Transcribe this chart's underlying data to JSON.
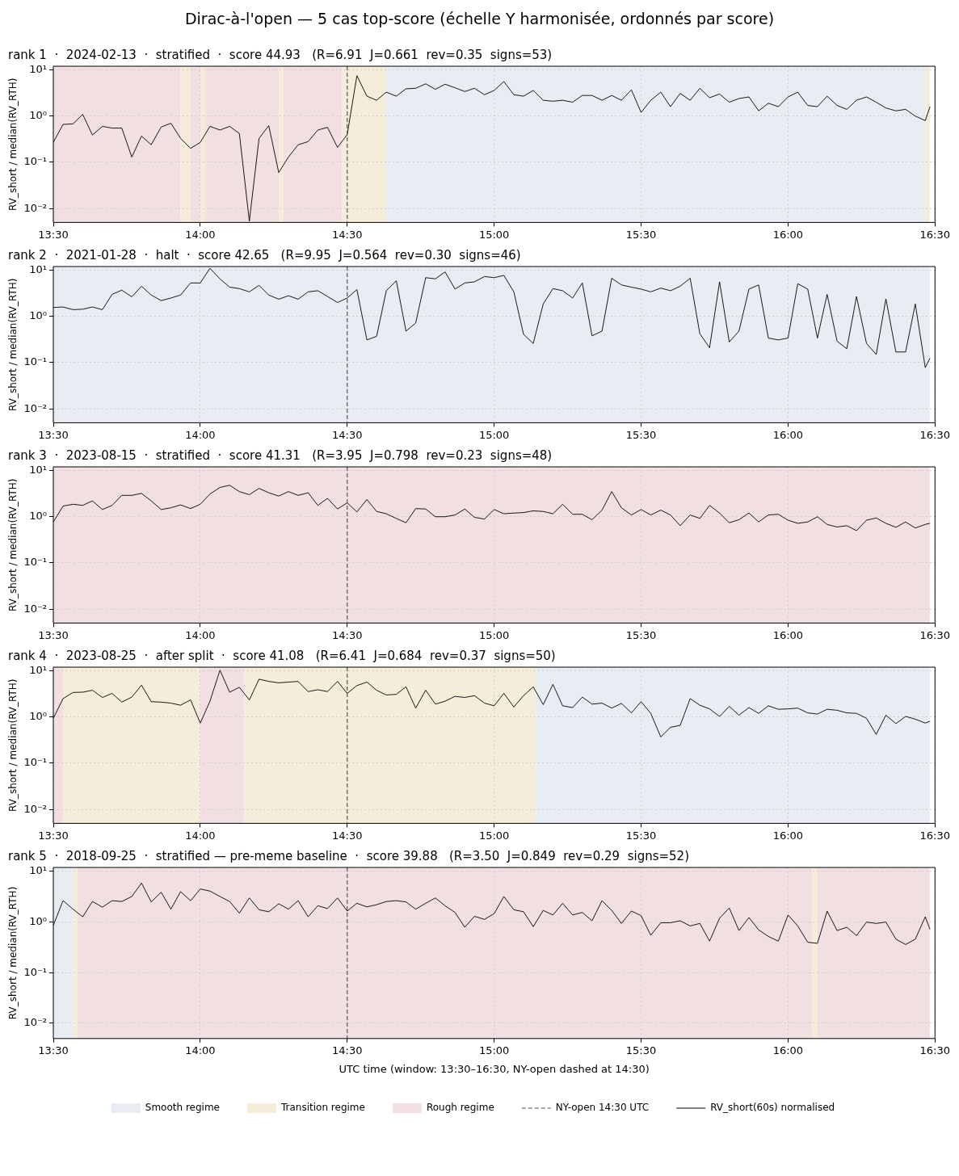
{
  "chart_data": [
    {
      "type": "line",
      "title": "Dirac-à-l'open — 5 cas top-score (échelle Y harmonisée, ordonnés par score)",
      "subtitle": "rank 1  ·  2024-02-13  ·  stratified  ·  score 44.93   (R=6.91  J=0.661  rev=0.35  signs=53)",
      "ylabel": "RV_short / median(RV_RTH)",
      "log": "y",
      "grid": true,
      "marker": "none",
      "xlim": [
        13.5,
        16.5
      ],
      "xticks": [
        {
          "value": 13.5,
          "label": "13:30"
        },
        {
          "value": 14,
          "label": "14:00"
        },
        {
          "value": 14.5,
          "label": "14:30"
        },
        {
          "value": 15,
          "label": "15:00"
        },
        {
          "value": 15.5,
          "label": "15:30"
        },
        {
          "value": 16,
          "label": "16:00"
        },
        {
          "value": 16.5,
          "label": "16:30"
        }
      ],
      "ylim": [
        0.005,
        12
      ],
      "yticks": [
        {
          "value": 0.01,
          "label": "10⁻²"
        },
        {
          "value": 0.1,
          "label": "10⁻¹"
        },
        {
          "value": 1,
          "label": "10⁰"
        },
        {
          "value": 10,
          "label": "10¹"
        }
      ],
      "x": [
        13.5,
        13.533,
        13.567,
        13.6,
        13.633,
        13.667,
        13.7,
        13.733,
        13.767,
        13.8,
        13.833,
        13.867,
        13.9,
        13.933,
        13.967,
        14.0,
        14.033,
        14.067,
        14.1,
        14.133,
        14.167,
        14.2,
        14.233,
        14.267,
        14.3,
        14.333,
        14.367,
        14.4,
        14.433,
        14.467,
        14.5,
        14.533,
        14.567,
        14.6,
        14.633,
        14.667,
        14.7,
        14.733,
        14.767,
        14.8,
        14.833,
        14.867,
        14.9,
        14.933,
        14.967,
        15.0,
        15.033,
        15.067,
        15.1,
        15.133,
        15.167,
        15.2,
        15.233,
        15.267,
        15.3,
        15.333,
        15.367,
        15.4,
        15.433,
        15.467,
        15.5,
        15.533,
        15.567,
        15.6,
        15.633,
        15.667,
        15.7,
        15.733,
        15.767,
        15.8,
        15.833,
        15.867,
        15.9,
        15.933,
        15.967,
        16.0,
        16.033,
        16.067,
        16.1,
        16.133,
        16.167,
        16.2,
        16.233,
        16.267,
        16.3,
        16.333,
        16.367,
        16.4,
        16.433,
        16.467,
        16.483
      ],
      "series": [
        {
          "color": "#000000",
          "values": [
            0.27,
            0.66,
            0.68,
            1.09,
            0.39,
            0.6,
            0.55,
            0.55,
            0.13,
            0.37,
            0.24,
            0.58,
            0.7,
            0.33,
            0.2,
            0.27,
            0.6,
            0.5,
            0.6,
            0.42,
            0.0053,
            0.33,
            0.62,
            0.06,
            0.13,
            0.24,
            0.28,
            0.5,
            0.57,
            0.21,
            0.4,
            7.5,
            2.7,
            2.2,
            3.3,
            2.7,
            3.9,
            4.0,
            5.0,
            3.8,
            4.9,
            4.1,
            3.4,
            4.0,
            2.9,
            3.6,
            5.6,
            2.9,
            2.7,
            3.6,
            2.2,
            2.1,
            2.2,
            2.0,
            2.8,
            2.8,
            2.2,
            2.8,
            2.2,
            3.7,
            1.2,
            2.2,
            3.3,
            1.6,
            3.1,
            2.2,
            4.0,
            2.5,
            3.0,
            2.0,
            2.4,
            2.6,
            1.3,
            1.9,
            1.6,
            2.6,
            3.3,
            1.7,
            1.6,
            2.7,
            1.7,
            1.4,
            2.2,
            2.6,
            2.0,
            1.5,
            1.3,
            1.4,
            1.0,
            0.8,
            1.6
          ]
        }
      ],
      "ref_lines": [
        {
          "axis": "x",
          "value": 14.5,
          "color": "#555555",
          "line_style": "dashed"
        }
      ],
      "bands": [
        {
          "axis": "x",
          "from": 13.5,
          "to": 13.933,
          "color": "#f2dfe2"
        },
        {
          "axis": "x",
          "from": 13.933,
          "to": 13.967,
          "color": "#f5ecd9"
        },
        {
          "axis": "x",
          "from": 13.967,
          "to": 14.0,
          "color": "#f2dfe2"
        },
        {
          "axis": "x",
          "from": 14.0,
          "to": 14.017,
          "color": "#f5ecd9"
        },
        {
          "axis": "x",
          "from": 14.017,
          "to": 14.267,
          "color": "#f2dfe2"
        },
        {
          "axis": "x",
          "from": 14.267,
          "to": 14.283,
          "color": "#f5ecd9"
        },
        {
          "axis": "x",
          "from": 14.283,
          "to": 14.483,
          "color": "#f2dfe2"
        },
        {
          "axis": "x",
          "from": 14.483,
          "to": 14.633,
          "color": "#f5ecd9"
        },
        {
          "axis": "x",
          "from": 14.633,
          "to": 16.467,
          "color": "#e8edf3"
        },
        {
          "axis": "x",
          "from": 16.467,
          "to": 16.483,
          "color": "#f5ecd9"
        }
      ]
    },
    {
      "type": "line",
      "subtitle": "rank 2  ·  2021-01-28  ·  halt  ·  score 42.65   (R=9.95  J=0.564  rev=0.30  signs=46)",
      "ylabel": "RV_short / median(RV_RTH)",
      "log": "y",
      "grid": true,
      "marker": "none",
      "xlim": [
        13.5,
        16.5
      ],
      "xticks": [
        {
          "value": 13.5,
          "label": "13:30"
        },
        {
          "value": 14,
          "label": "14:00"
        },
        {
          "value": 14.5,
          "label": "14:30"
        },
        {
          "value": 15,
          "label": "15:00"
        },
        {
          "value": 15.5,
          "label": "15:30"
        },
        {
          "value": 16,
          "label": "16:00"
        },
        {
          "value": 16.5,
          "label": "16:30"
        }
      ],
      "ylim": [
        0.005,
        12
      ],
      "yticks": [
        {
          "value": 0.01,
          "label": "10⁻²"
        },
        {
          "value": 0.1,
          "label": "10⁻¹"
        },
        {
          "value": 1,
          "label": "10⁰"
        },
        {
          "value": 10,
          "label": "10¹"
        }
      ],
      "x": [
        13.5,
        13.533,
        13.567,
        13.6,
        13.633,
        13.667,
        13.7,
        13.733,
        13.767,
        13.8,
        13.833,
        13.867,
        13.9,
        13.933,
        13.967,
        14.0,
        14.033,
        14.067,
        14.1,
        14.133,
        14.167,
        14.2,
        14.233,
        14.267,
        14.3,
        14.333,
        14.367,
        14.4,
        14.433,
        14.467,
        14.5,
        14.533,
        14.567,
        14.6,
        14.633,
        14.667,
        14.7,
        14.733,
        14.767,
        14.8,
        14.833,
        14.867,
        14.9,
        14.933,
        14.967,
        15.0,
        15.033,
        15.067,
        15.1,
        15.133,
        15.167,
        15.2,
        15.233,
        15.267,
        15.3,
        15.333,
        15.367,
        15.4,
        15.433,
        15.467,
        15.5,
        15.533,
        15.567,
        15.6,
        15.633,
        15.667,
        15.7,
        15.733,
        15.767,
        15.8,
        15.833,
        15.867,
        15.9,
        15.933,
        15.967,
        16.0,
        16.033,
        16.067,
        16.1,
        16.133,
        16.167,
        16.2,
        16.233,
        16.267,
        16.3,
        16.333,
        16.367,
        16.4,
        16.433,
        16.467,
        16.483
      ],
      "series": [
        {
          "color": "#000000",
          "values": [
            1.56,
            1.6,
            1.4,
            1.43,
            1.6,
            1.4,
            3.0,
            3.7,
            2.65,
            4.5,
            2.9,
            2.2,
            2.5,
            2.9,
            5.3,
            5.3,
            11,
            6.5,
            4.3,
            4.0,
            3.4,
            4.7,
            2.9,
            2.36,
            2.8,
            2.36,
            3.4,
            3.6,
            2.7,
            2.0,
            2.5,
            3.8,
            0.31,
            0.37,
            3.6,
            5.9,
            0.48,
            0.72,
            6.9,
            6.5,
            9.2,
            3.9,
            5.3,
            5.6,
            7.3,
            6.9,
            7.7,
            3.4,
            0.41,
            0.26,
            1.86,
            4.0,
            3.6,
            2.5,
            5.3,
            0.38,
            0.48,
            6.7,
            4.8,
            4.3,
            3.9,
            3.4,
            4.1,
            3.6,
            4.5,
            6.7,
            0.42,
            0.21,
            5.6,
            0.28,
            0.48,
            3.9,
            4.8,
            0.34,
            0.31,
            0.34,
            5.1,
            3.9,
            0.34,
            3.0,
            0.29,
            0.2,
            2.7,
            0.26,
            0.15,
            2.4,
            0.17,
            0.17,
            1.86,
            0.078,
            0.125
          ]
        }
      ],
      "ref_lines": [
        {
          "axis": "x",
          "value": 14.5,
          "color": "#555555",
          "line_style": "dashed"
        }
      ],
      "bands": [
        {
          "axis": "x",
          "from": 13.5,
          "to": 16.483,
          "color": "#e8edf3"
        }
      ]
    },
    {
      "type": "line",
      "subtitle": "rank 3  ·  2023-08-15  ·  stratified  ·  score 41.31   (R=3.95  J=0.798  rev=0.23  signs=48)",
      "ylabel": "RV_short / median(RV_RTH)",
      "log": "y",
      "grid": true,
      "marker": "none",
      "xlim": [
        13.5,
        16.5
      ],
      "xticks": [
        {
          "value": 13.5,
          "label": "13:30"
        },
        {
          "value": 14,
          "label": "14:00"
        },
        {
          "value": 14.5,
          "label": "14:30"
        },
        {
          "value": 15,
          "label": "15:00"
        },
        {
          "value": 15.5,
          "label": "15:30"
        },
        {
          "value": 16,
          "label": "16:00"
        },
        {
          "value": 16.5,
          "label": "16:30"
        }
      ],
      "ylim": [
        0.005,
        12
      ],
      "yticks": [
        {
          "value": 0.01,
          "label": "10⁻²"
        },
        {
          "value": 0.1,
          "label": "10⁻¹"
        },
        {
          "value": 1,
          "label": "10⁰"
        },
        {
          "value": 10,
          "label": "10¹"
        }
      ],
      "x": [
        13.5,
        13.533,
        13.567,
        13.6,
        13.633,
        13.667,
        13.7,
        13.733,
        13.767,
        13.8,
        13.833,
        13.867,
        13.9,
        13.933,
        13.967,
        14.0,
        14.033,
        14.067,
        14.1,
        14.133,
        14.167,
        14.2,
        14.233,
        14.267,
        14.3,
        14.333,
        14.367,
        14.4,
        14.433,
        14.467,
        14.5,
        14.533,
        14.567,
        14.6,
        14.633,
        14.667,
        14.7,
        14.733,
        14.767,
        14.8,
        14.833,
        14.867,
        14.9,
        14.933,
        14.967,
        15.0,
        15.033,
        15.067,
        15.1,
        15.133,
        15.167,
        15.2,
        15.233,
        15.267,
        15.3,
        15.333,
        15.367,
        15.4,
        15.433,
        15.467,
        15.5,
        15.533,
        15.567,
        15.6,
        15.633,
        15.667,
        15.7,
        15.733,
        15.767,
        15.8,
        15.833,
        15.867,
        15.9,
        15.933,
        15.967,
        16.0,
        16.033,
        16.067,
        16.1,
        16.133,
        16.167,
        16.2,
        16.233,
        16.267,
        16.3,
        16.333,
        16.367,
        16.4,
        16.433,
        16.467,
        16.483
      ],
      "series": [
        {
          "color": "#000000",
          "values": [
            0.77,
            1.7,
            1.86,
            1.76,
            2.2,
            1.43,
            1.76,
            2.9,
            2.9,
            3.2,
            2.2,
            1.43,
            1.56,
            1.8,
            1.5,
            1.86,
            3.1,
            4.3,
            4.8,
            3.5,
            3.0,
            4.1,
            3.3,
            2.8,
            3.5,
            2.9,
            3.3,
            1.76,
            2.5,
            1.47,
            2.0,
            1.27,
            2.36,
            1.3,
            1.16,
            0.92,
            0.74,
            1.5,
            1.47,
            1.0,
            1.0,
            1.09,
            1.47,
            0.97,
            0.89,
            1.43,
            1.16,
            1.2,
            1.23,
            1.34,
            1.3,
            1.16,
            1.86,
            1.13,
            1.13,
            0.86,
            1.39,
            3.5,
            1.56,
            1.09,
            1.43,
            1.09,
            1.39,
            1.09,
            0.64,
            1.09,
            0.92,
            1.76,
            1.2,
            0.74,
            0.86,
            1.2,
            0.77,
            1.09,
            1.13,
            0.84,
            0.72,
            0.77,
            1.0,
            0.68,
            0.6,
            0.64,
            0.5,
            0.84,
            0.94,
            0.72,
            0.59,
            0.77,
            0.57,
            0.68,
            0.72
          ]
        }
      ],
      "ref_lines": [
        {
          "axis": "x",
          "value": 14.5,
          "color": "#555555",
          "line_style": "dashed"
        }
      ],
      "bands": [
        {
          "axis": "x",
          "from": 13.5,
          "to": 16.483,
          "color": "#f2dfe2"
        }
      ]
    },
    {
      "type": "line",
      "subtitle": "rank 4  ·  2023-08-25  ·  after split  ·  score 41.08   (R=6.41  J=0.684  rev=0.37  signs=50)",
      "ylabel": "RV_short / median(RV_RTH)",
      "log": "y",
      "grid": true,
      "marker": "none",
      "xlim": [
        13.5,
        16.5
      ],
      "xticks": [
        {
          "value": 13.5,
          "label": "13:30"
        },
        {
          "value": 14,
          "label": "14:00"
        },
        {
          "value": 14.5,
          "label": "14:30"
        },
        {
          "value": 15,
          "label": "15:00"
        },
        {
          "value": 15.5,
          "label": "15:30"
        },
        {
          "value": 16,
          "label": "16:00"
        },
        {
          "value": 16.5,
          "label": "16:30"
        }
      ],
      "ylim": [
        0.005,
        12
      ],
      "yticks": [
        {
          "value": 0.01,
          "label": "10⁻²"
        },
        {
          "value": 0.1,
          "label": "10⁻¹"
        },
        {
          "value": 1,
          "label": "10⁰"
        },
        {
          "value": 10,
          "label": "10¹"
        }
      ],
      "x": [
        13.5,
        13.533,
        13.567,
        13.6,
        13.633,
        13.667,
        13.7,
        13.733,
        13.767,
        13.8,
        13.833,
        13.867,
        13.9,
        13.933,
        13.967,
        14.0,
        14.033,
        14.067,
        14.1,
        14.133,
        14.167,
        14.2,
        14.233,
        14.267,
        14.3,
        14.333,
        14.367,
        14.4,
        14.433,
        14.467,
        14.5,
        14.533,
        14.567,
        14.6,
        14.633,
        14.667,
        14.7,
        14.733,
        14.767,
        14.8,
        14.833,
        14.867,
        14.9,
        14.933,
        14.967,
        15.0,
        15.033,
        15.067,
        15.1,
        15.133,
        15.167,
        15.2,
        15.233,
        15.267,
        15.3,
        15.333,
        15.367,
        15.4,
        15.433,
        15.467,
        15.5,
        15.533,
        15.567,
        15.6,
        15.633,
        15.667,
        15.7,
        15.733,
        15.767,
        15.8,
        15.833,
        15.867,
        15.9,
        15.933,
        15.967,
        16.0,
        16.033,
        16.067,
        16.1,
        16.133,
        16.167,
        16.2,
        16.233,
        16.267,
        16.3,
        16.333,
        16.367,
        16.4,
        16.433,
        16.467,
        16.483
      ],
      "series": [
        {
          "color": "#000000",
          "values": [
            0.94,
            2.5,
            3.4,
            3.45,
            3.8,
            2.65,
            3.25,
            2.1,
            2.7,
            4.9,
            2.15,
            2.1,
            2.0,
            1.8,
            2.35,
            0.74,
            2.2,
            10.3,
            3.45,
            4.4,
            2.35,
            6.6,
            5.9,
            5.5,
            5.7,
            5.9,
            3.55,
            3.9,
            3.55,
            5.9,
            3.25,
            4.8,
            5.7,
            3.8,
            3.0,
            3.1,
            4.5,
            1.56,
            3.8,
            1.9,
            2.2,
            2.8,
            2.65,
            2.9,
            2.0,
            1.75,
            3.25,
            1.65,
            2.9,
            4.5,
            1.85,
            5.1,
            1.75,
            1.6,
            2.7,
            1.9,
            2.0,
            1.56,
            1.97,
            1.23,
            2.15,
            1.2,
            0.37,
            0.6,
            0.66,
            2.5,
            1.8,
            1.5,
            1.03,
            1.7,
            1.1,
            1.6,
            1.2,
            1.75,
            1.47,
            1.5,
            1.56,
            1.23,
            1.16,
            1.47,
            1.4,
            1.23,
            1.2,
            0.94,
            0.42,
            1.1,
            0.72,
            1.03,
            0.9,
            0.74,
            0.81
          ]
        }
      ],
      "ref_lines": [
        {
          "axis": "x",
          "value": 14.5,
          "color": "#555555",
          "line_style": "dashed"
        }
      ],
      "bands": [
        {
          "axis": "x",
          "from": 13.5,
          "to": 13.533,
          "color": "#f2dfe2"
        },
        {
          "axis": "x",
          "from": 13.533,
          "to": 14.0,
          "color": "#f5ecd9"
        },
        {
          "axis": "x",
          "from": 14.0,
          "to": 14.15,
          "color": "#f2dfe2"
        },
        {
          "axis": "x",
          "from": 14.15,
          "to": 15.142,
          "color": "#f5ecd9"
        },
        {
          "axis": "x",
          "from": 15.142,
          "to": 16.483,
          "color": "#e8edf3"
        }
      ]
    },
    {
      "type": "line",
      "subtitle": "rank 5  ·  2018-09-25  ·  stratified — pre-meme baseline  ·  score 39.88   (R=3.50  J=0.849  rev=0.29  signs=52)",
      "xlabel": "UTC time (window: 13:30–16:30, NY-open dashed at 14:30)",
      "ylabel": "RV_short / median(RV_RTH)",
      "log": "y",
      "grid": true,
      "marker": "none",
      "legend": "bottom",
      "xlim": [
        13.5,
        16.5
      ],
      "xticks": [
        {
          "value": 13.5,
          "label": "13:30"
        },
        {
          "value": 14,
          "label": "14:00"
        },
        {
          "value": 14.5,
          "label": "14:30"
        },
        {
          "value": 15,
          "label": "15:00"
        },
        {
          "value": 15.5,
          "label": "15:30"
        },
        {
          "value": 16,
          "label": "16:00"
        },
        {
          "value": 16.5,
          "label": "16:30"
        }
      ],
      "ylim": [
        0.005,
        12
      ],
      "yticks": [
        {
          "value": 0.01,
          "label": "10⁻²"
        },
        {
          "value": 0.1,
          "label": "10⁻¹"
        },
        {
          "value": 1,
          "label": "10⁰"
        },
        {
          "value": 10,
          "label": "10¹"
        }
      ],
      "x": [
        13.5,
        13.533,
        13.567,
        13.6,
        13.633,
        13.667,
        13.7,
        13.733,
        13.767,
        13.8,
        13.833,
        13.867,
        13.9,
        13.933,
        13.967,
        14.0,
        14.033,
        14.067,
        14.1,
        14.133,
        14.167,
        14.2,
        14.233,
        14.267,
        14.3,
        14.333,
        14.367,
        14.4,
        14.433,
        14.467,
        14.5,
        14.533,
        14.567,
        14.6,
        14.633,
        14.667,
        14.7,
        14.733,
        14.767,
        14.8,
        14.833,
        14.867,
        14.9,
        14.933,
        14.967,
        15.0,
        15.033,
        15.067,
        15.1,
        15.133,
        15.167,
        15.2,
        15.233,
        15.267,
        15.3,
        15.333,
        15.367,
        15.4,
        15.433,
        15.467,
        15.5,
        15.533,
        15.567,
        15.6,
        15.633,
        15.667,
        15.7,
        15.733,
        15.767,
        15.8,
        15.833,
        15.867,
        15.9,
        15.933,
        15.967,
        16.0,
        16.033,
        16.067,
        16.1,
        16.133,
        16.167,
        16.2,
        16.233,
        16.267,
        16.3,
        16.333,
        16.367,
        16.4,
        16.433,
        16.467,
        16.483
      ],
      "series": [
        {
          "name": "RV_short(60s) normalised",
          "color": "#000000",
          "values": [
            0.86,
            2.65,
            1.8,
            1.27,
            2.55,
            1.97,
            2.65,
            2.55,
            3.2,
            5.9,
            2.5,
            3.9,
            1.8,
            4.0,
            2.65,
            4.5,
            4.1,
            3.2,
            2.55,
            1.5,
            3.0,
            1.75,
            1.6,
            2.3,
            1.8,
            2.65,
            1.27,
            2.1,
            1.85,
            3.0,
            1.65,
            2.35,
            2.0,
            2.2,
            2.55,
            2.65,
            2.5,
            1.8,
            2.35,
            3.0,
            2.1,
            1.55,
            0.79,
            1.3,
            1.13,
            1.47,
            3.2,
            1.75,
            1.6,
            0.81,
            1.7,
            1.38,
            2.35,
            1.38,
            1.55,
            1.06,
            2.65,
            1.7,
            0.94,
            1.65,
            1.34,
            0.55,
            0.97,
            0.97,
            1.06,
            0.84,
            0.94,
            0.42,
            1.19,
            1.9,
            0.68,
            1.23,
            0.7,
            0.52,
            0.42,
            1.38,
            0.84,
            0.4,
            0.38,
            1.65,
            0.68,
            0.79,
            0.54,
            1.0,
            0.94,
            1.0,
            0.46,
            0.36,
            0.46,
            1.27,
            0.72
          ]
        }
      ],
      "ref_lines": [
        {
          "axis": "x",
          "value": 14.5,
          "label": "NY-open 14:30 UTC",
          "color": "#555555",
          "line_style": "dashed"
        }
      ],
      "bands": [
        {
          "axis": "x",
          "from": 13.5,
          "to": 13.567,
          "label": "Smooth regime",
          "color": "#e8edf3"
        },
        {
          "axis": "x",
          "from": 13.567,
          "to": 13.583,
          "label": "Transition regime",
          "color": "#f5ecd9"
        },
        {
          "axis": "x",
          "from": 13.583,
          "to": 16.083,
          "label": "Rough regime",
          "color": "#f2dfe2"
        },
        {
          "axis": "x",
          "from": 16.083,
          "to": 16.1,
          "color": "#f5ecd9"
        },
        {
          "axis": "x",
          "from": 16.1,
          "to": 16.483,
          "color": "#f2dfe2"
        }
      ]
    }
  ]
}
